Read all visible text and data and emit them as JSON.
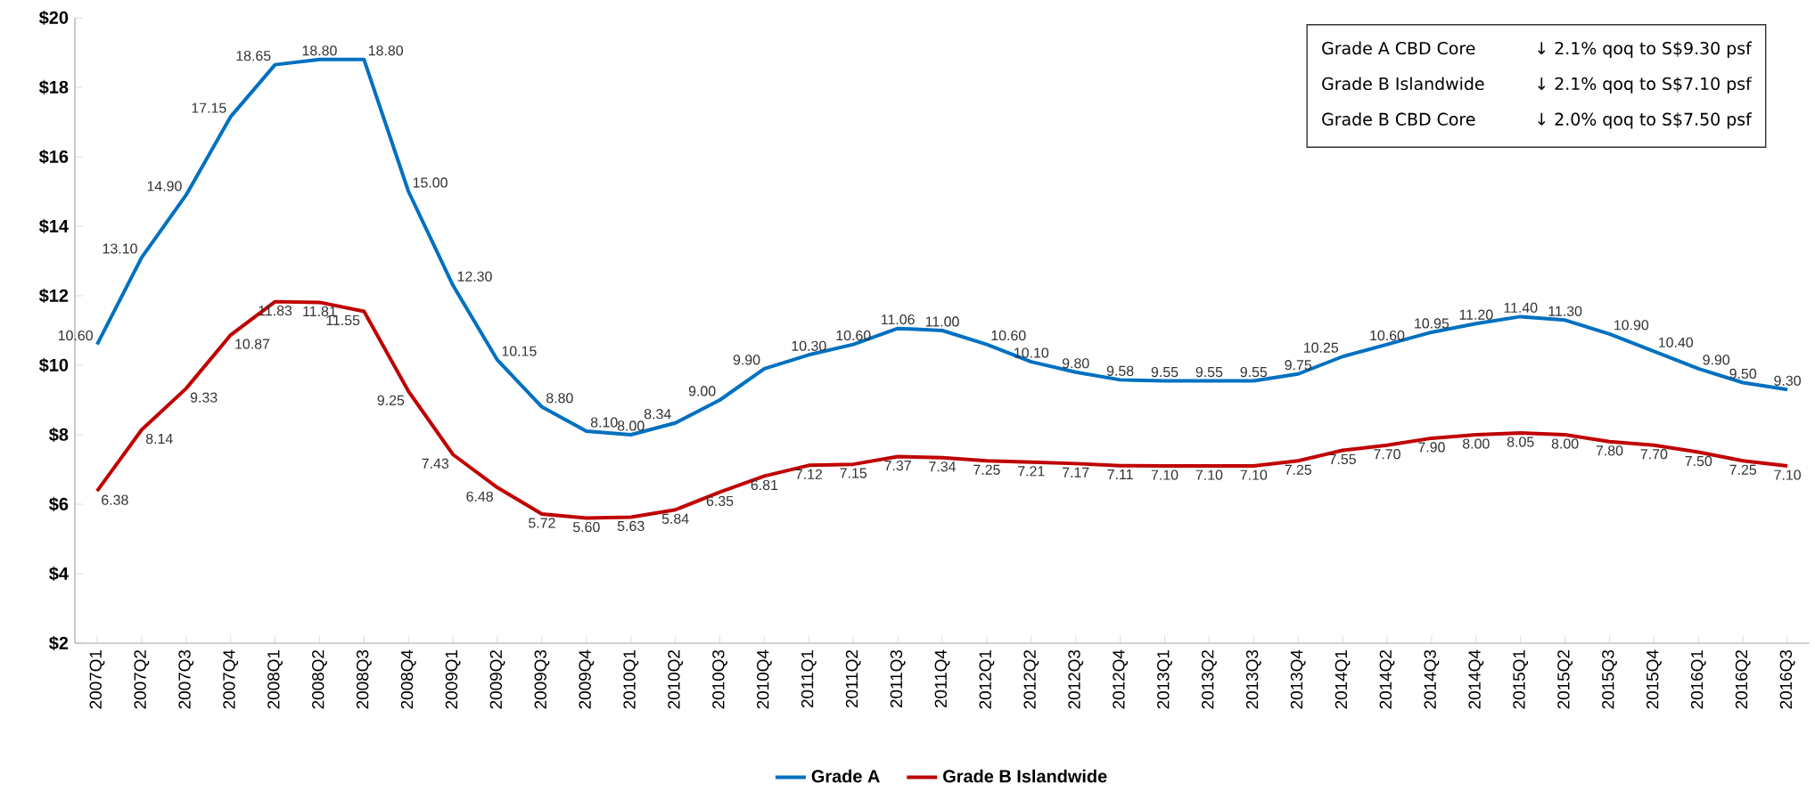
{
  "chart_data": {
    "type": "line",
    "categories": [
      "2007Q1",
      "2007Q2",
      "2007Q3",
      "2007Q4",
      "2008Q1",
      "2008Q2",
      "2008Q3",
      "2008Q4",
      "2009Q1",
      "2009Q2",
      "2009Q3",
      "2009Q4",
      "2010Q1",
      "2010Q2",
      "2010Q3",
      "2010Q4",
      "2011Q1",
      "2011Q2",
      "2011Q3",
      "2011Q4",
      "2012Q1",
      "2012Q2",
      "2012Q3",
      "2012Q4",
      "2013Q1",
      "2013Q2",
      "2013Q3",
      "2013Q4",
      "2014Q1",
      "2014Q2",
      "2014Q3",
      "2014Q4",
      "2015Q1",
      "2015Q2",
      "2015Q3",
      "2015Q4",
      "2016Q1",
      "2016Q2",
      "2016Q3"
    ],
    "series": [
      {
        "name": "Grade A",
        "color": "#0070c0",
        "values": [
          10.6,
          13.1,
          14.9,
          17.15,
          18.65,
          18.8,
          18.8,
          15.0,
          12.3,
          10.15,
          8.8,
          8.1,
          8.0,
          8.34,
          9.0,
          9.9,
          10.3,
          10.6,
          11.06,
          11.0,
          10.6,
          10.1,
          9.8,
          9.58,
          9.55,
          9.55,
          9.55,
          9.75,
          10.25,
          10.6,
          10.95,
          11.2,
          11.4,
          11.3,
          10.9,
          10.4,
          9.9,
          9.5,
          9.3
        ],
        "value_labels": [
          "10.60",
          "13.10",
          "14.90",
          "17.15",
          "18.65",
          "18.80",
          "18.80",
          "15.00",
          "12.30",
          "10.15",
          "8.80",
          "8.10",
          "8.00",
          "8.34",
          "9.00",
          "9.90",
          "10.30",
          "10.60",
          "11.06",
          "11.00",
          "10.60",
          "10.10",
          "9.80",
          "9.58",
          "9.55",
          "9.55",
          "9.55",
          "9.75",
          "10.25",
          "10.60",
          "10.95",
          "11.20",
          "11.40",
          "11.30",
          "10.90",
          "10.40",
          "9.90",
          "9.50",
          "9.30"
        ]
      },
      {
        "name": "Grade B Islandwide",
        "color": "#c00000",
        "values": [
          6.38,
          8.14,
          9.33,
          10.87,
          11.83,
          11.81,
          11.55,
          9.25,
          7.43,
          6.48,
          5.72,
          5.6,
          5.63,
          5.84,
          6.35,
          6.81,
          7.12,
          7.15,
          7.37,
          7.34,
          7.25,
          7.21,
          7.17,
          7.11,
          7.1,
          7.1,
          7.1,
          7.25,
          7.55,
          7.7,
          7.9,
          8.0,
          8.05,
          8.0,
          7.8,
          7.7,
          7.5,
          7.25,
          7.1
        ],
        "value_labels": [
          "6.38",
          "8.14",
          "9.33",
          "10.87",
          "11.83",
          "11.81",
          "11.55",
          "9.25",
          "7.43",
          "6.48",
          "5.72",
          "5.60",
          "5.63",
          "5.84",
          "6.35",
          "6.81",
          "7.12",
          "7.15",
          "7.37",
          "7.34",
          "7.25",
          "7.21",
          "7.17",
          "7.11",
          "7.10",
          "7.10",
          "7.10",
          "7.25",
          "7.55",
          "7.70",
          "7.90",
          "8.00",
          "8.05",
          "8.00",
          "7.80",
          "7.70",
          "7.50",
          "7.25",
          "7.10"
        ]
      }
    ],
    "ylim": [
      2,
      20
    ],
    "yticks": [
      {
        "value": 2,
        "label": "$2"
      },
      {
        "value": 4,
        "label": "$4"
      },
      {
        "value": 6,
        "label": "$6"
      },
      {
        "value": 8,
        "label": "$8"
      },
      {
        "value": 10,
        "label": "$10"
      },
      {
        "value": 12,
        "label": "$12"
      },
      {
        "value": 14,
        "label": "$14"
      },
      {
        "value": 16,
        "label": "$16"
      },
      {
        "value": 18,
        "label": "$18"
      },
      {
        "value": 20,
        "label": "$20"
      }
    ],
    "annotations": [
      "Grade A CBD Core",
      "↓ 2.1% qoq to S$9.30 psf",
      "Grade B Islandwide",
      "↓ 2.1% qoq to S$7.10 psf",
      "Grade B CBD Core",
      "↓ 2.0% qoq to S$7.50 psf"
    ],
    "legend": "bottom",
    "grid": false,
    "line_style": "solid"
  }
}
